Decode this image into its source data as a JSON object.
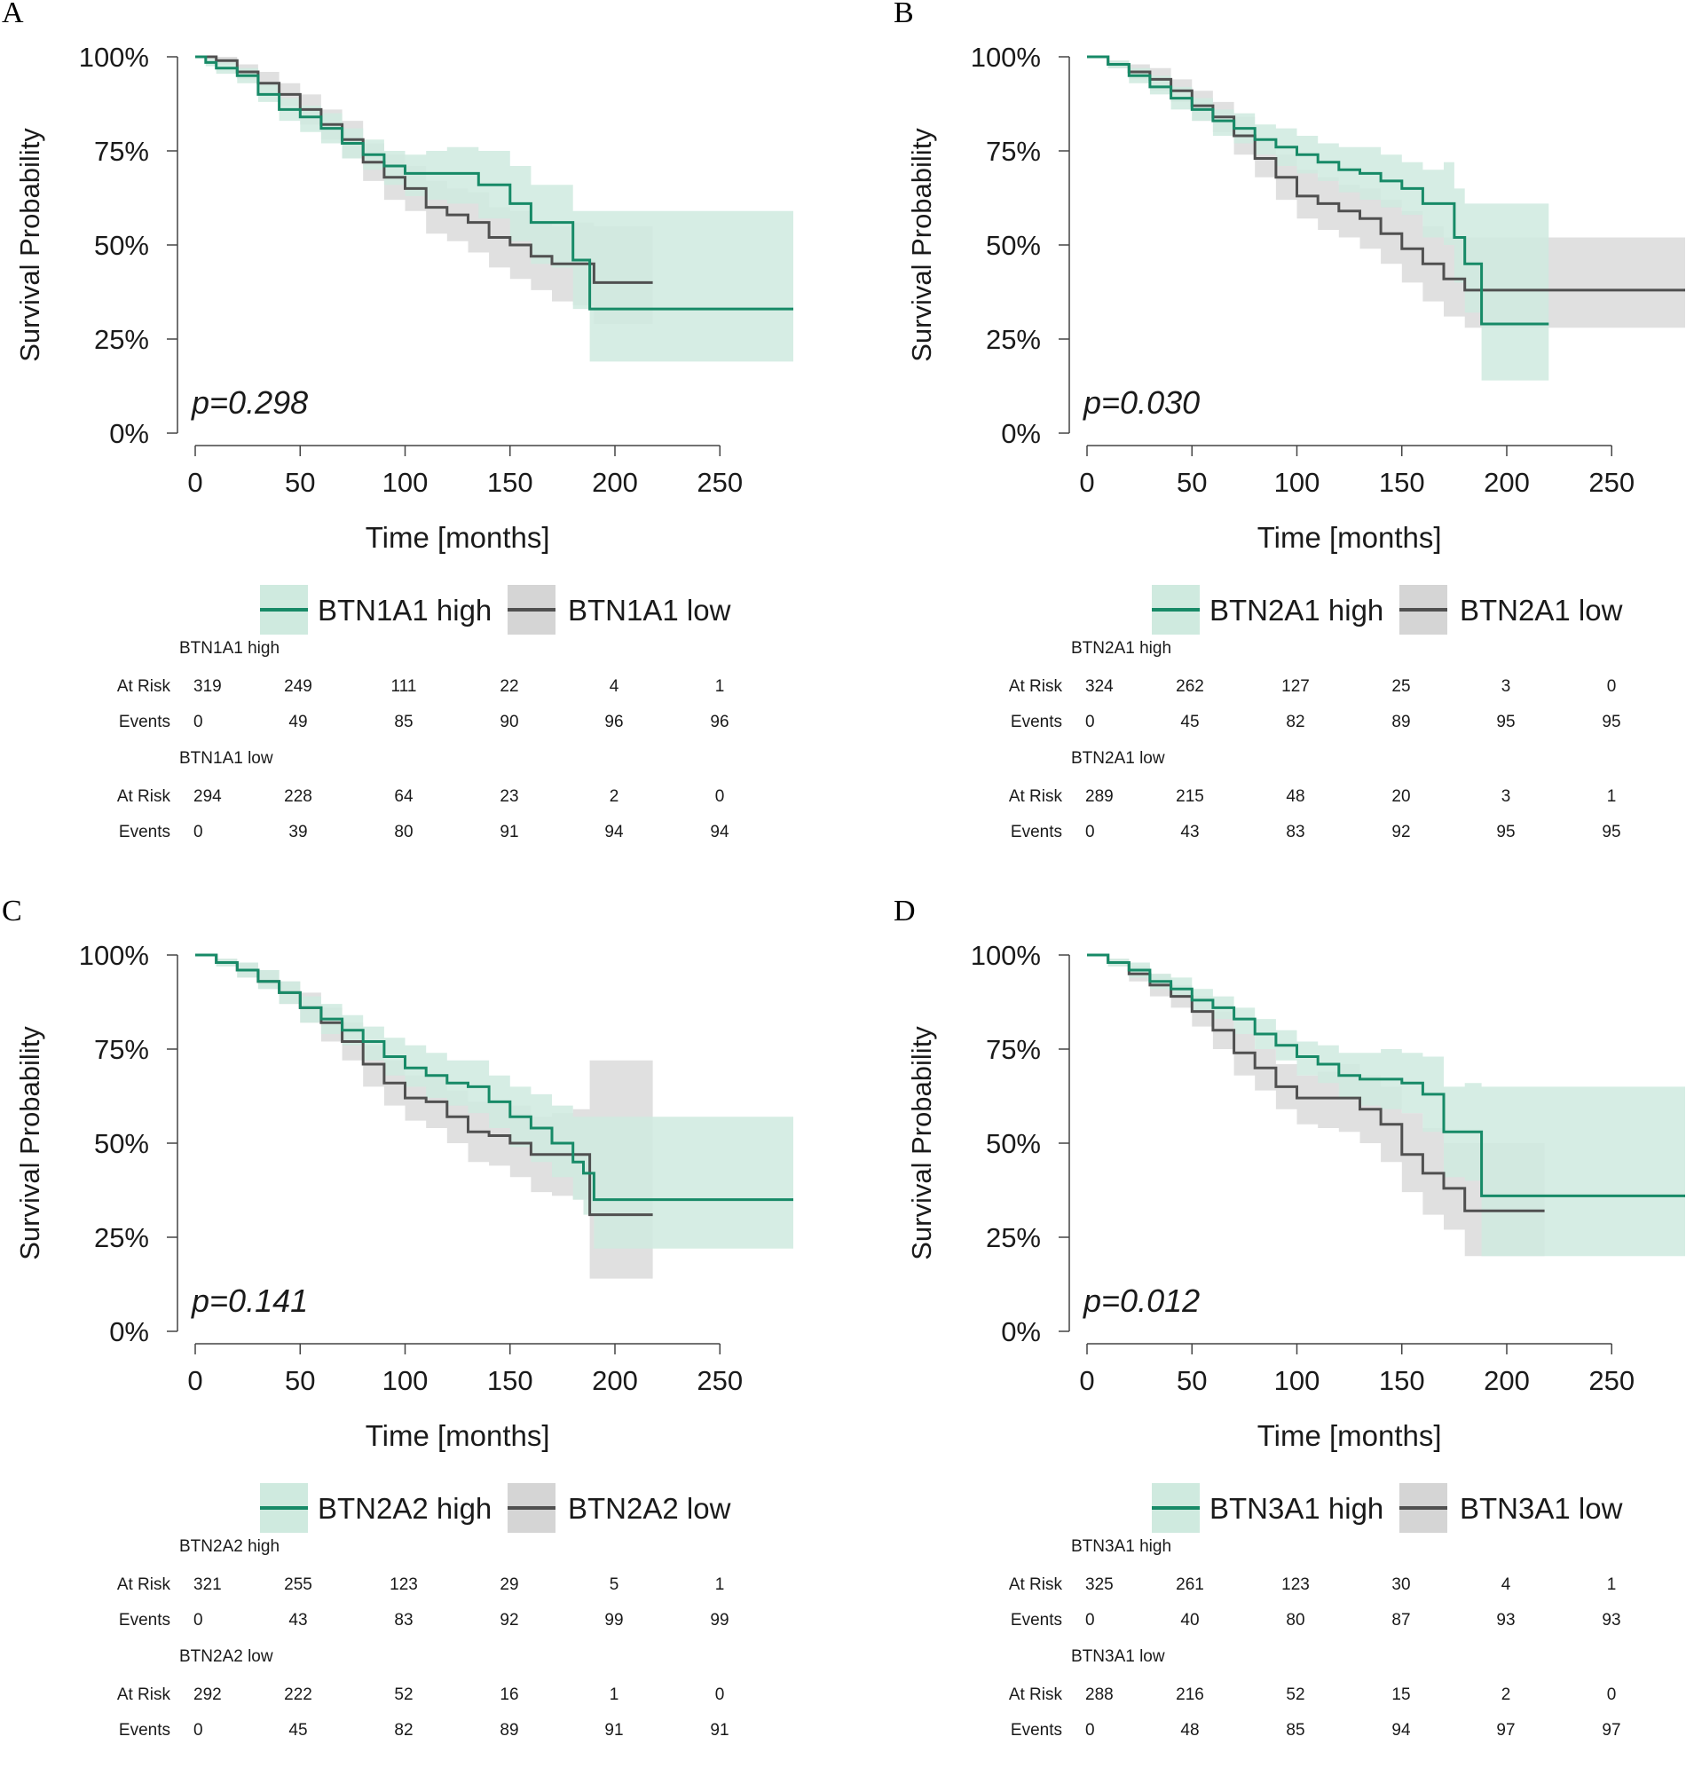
{
  "figure": {
    "x_ticks": [
      0,
      50,
      100,
      150,
      200,
      250
    ],
    "x_tick_labels": [
      "0",
      "50",
      "100",
      "150",
      "200",
      "250"
    ],
    "y_tick_labels": [
      "0%",
      "25%",
      "50%",
      "75%",
      "100%"
    ],
    "xlabel": "Time [months]",
    "ylabel": "Survival Probability",
    "at_risk_label": "At Risk",
    "events_label": "Events",
    "colors": {
      "high": "#178a67",
      "high_band": "#cfeadf",
      "low": "#505050",
      "low_band": "#d5d5d5"
    }
  },
  "chart_data": [
    {
      "type": "line",
      "panel": "A",
      "p_value": "p=0.298",
      "xlim": [
        0,
        280
      ],
      "ylim": [
        0,
        1
      ],
      "legend": {
        "high": "BTN1A1 high",
        "low": "BTN1A1 low"
      },
      "series": [
        {
          "name": "BTN1A1 high",
          "x": [
            0,
            5,
            10,
            20,
            30,
            40,
            50,
            60,
            70,
            80,
            90,
            100,
            110,
            120,
            135,
            150,
            160,
            170,
            180,
            188,
            200,
            220,
            250,
            285
          ],
          "y": [
            1.0,
            0.985,
            0.97,
            0.95,
            0.9,
            0.86,
            0.84,
            0.81,
            0.77,
            0.74,
            0.71,
            0.69,
            0.69,
            0.69,
            0.66,
            0.61,
            0.56,
            0.56,
            0.46,
            0.33,
            0.33,
            0.33,
            0.33,
            0.33
          ],
          "lower": [
            1.0,
            0.975,
            0.955,
            0.93,
            0.88,
            0.83,
            0.8,
            0.77,
            0.73,
            0.7,
            0.66,
            0.63,
            0.62,
            0.61,
            0.57,
            0.51,
            0.45,
            0.44,
            0.33,
            0.19,
            0.19,
            0.19,
            0.19,
            0.19
          ],
          "upper": [
            1.0,
            0.995,
            0.985,
            0.97,
            0.93,
            0.89,
            0.87,
            0.85,
            0.81,
            0.78,
            0.75,
            0.74,
            0.75,
            0.76,
            0.75,
            0.71,
            0.66,
            0.66,
            0.59,
            0.59,
            0.59,
            0.59,
            0.59,
            0.59
          ]
        },
        {
          "name": "BTN1A1 low",
          "x": [
            0,
            5,
            10,
            20,
            30,
            40,
            50,
            60,
            70,
            80,
            90,
            100,
            110,
            120,
            130,
            140,
            150,
            160,
            170,
            180,
            190,
            200,
            218
          ],
          "y": [
            1.0,
            1.0,
            0.99,
            0.96,
            0.93,
            0.9,
            0.86,
            0.82,
            0.78,
            0.72,
            0.68,
            0.65,
            0.6,
            0.58,
            0.56,
            0.52,
            0.5,
            0.47,
            0.45,
            0.45,
            0.4,
            0.4,
            0.4
          ],
          "lower": [
            1.0,
            1.0,
            0.98,
            0.94,
            0.9,
            0.87,
            0.82,
            0.78,
            0.73,
            0.67,
            0.62,
            0.59,
            0.53,
            0.51,
            0.48,
            0.44,
            0.41,
            0.38,
            0.35,
            0.34,
            0.29,
            0.29,
            0.29
          ],
          "upper": [
            1.0,
            1.0,
            1.0,
            0.98,
            0.96,
            0.93,
            0.9,
            0.86,
            0.83,
            0.77,
            0.74,
            0.71,
            0.67,
            0.65,
            0.64,
            0.6,
            0.59,
            0.56,
            0.55,
            0.56,
            0.55,
            0.55,
            0.55
          ]
        }
      ],
      "risk_table": {
        "high_title": "BTN1A1 high",
        "high_at_risk": [
          "319",
          "249",
          "111",
          "22",
          "4",
          "1"
        ],
        "high_events": [
          "0",
          "49",
          "85",
          "90",
          "96",
          "96"
        ],
        "low_title": "BTN1A1 low",
        "low_at_risk": [
          "294",
          "228",
          "64",
          "23",
          "2",
          "0"
        ],
        "low_events": [
          "0",
          "39",
          "80",
          "91",
          "94",
          "94"
        ]
      }
    },
    {
      "type": "line",
      "panel": "B",
      "p_value": "p=0.030",
      "xlim": [
        0,
        285
      ],
      "ylim": [
        0,
        1
      ],
      "legend": {
        "high": "BTN2A1 high",
        "low": "BTN2A1 low"
      },
      "series": [
        {
          "name": "BTN2A1 high",
          "x": [
            0,
            10,
            20,
            30,
            40,
            50,
            60,
            70,
            80,
            90,
            100,
            110,
            120,
            130,
            140,
            150,
            160,
            170,
            175,
            180,
            188,
            200,
            220
          ],
          "y": [
            1.0,
            0.98,
            0.95,
            0.92,
            0.89,
            0.86,
            0.83,
            0.81,
            0.78,
            0.76,
            0.74,
            0.72,
            0.7,
            0.69,
            0.67,
            0.65,
            0.61,
            0.61,
            0.52,
            0.45,
            0.29,
            0.29,
            0.29
          ],
          "lower": [
            1.0,
            0.97,
            0.93,
            0.9,
            0.86,
            0.83,
            0.79,
            0.77,
            0.74,
            0.71,
            0.69,
            0.67,
            0.64,
            0.62,
            0.6,
            0.58,
            0.52,
            0.5,
            0.4,
            0.32,
            0.14,
            0.14,
            0.14
          ],
          "upper": [
            1.0,
            0.99,
            0.97,
            0.95,
            0.92,
            0.89,
            0.86,
            0.85,
            0.82,
            0.81,
            0.79,
            0.77,
            0.76,
            0.76,
            0.74,
            0.72,
            0.7,
            0.72,
            0.65,
            0.61,
            0.61,
            0.61,
            0.61
          ]
        },
        {
          "name": "BTN2A1 low",
          "x": [
            0,
            10,
            20,
            30,
            40,
            50,
            60,
            70,
            80,
            90,
            100,
            110,
            120,
            130,
            140,
            150,
            160,
            170,
            180,
            200,
            220,
            250,
            285
          ],
          "y": [
            1.0,
            0.98,
            0.96,
            0.94,
            0.91,
            0.87,
            0.84,
            0.79,
            0.73,
            0.68,
            0.63,
            0.61,
            0.59,
            0.57,
            0.53,
            0.49,
            0.45,
            0.41,
            0.38,
            0.38,
            0.38,
            0.38,
            0.38
          ],
          "lower": [
            1.0,
            0.97,
            0.94,
            0.91,
            0.88,
            0.83,
            0.8,
            0.74,
            0.68,
            0.62,
            0.57,
            0.54,
            0.52,
            0.49,
            0.45,
            0.4,
            0.35,
            0.31,
            0.28,
            0.28,
            0.28,
            0.28,
            0.28
          ],
          "upper": [
            1.0,
            0.99,
            0.98,
            0.97,
            0.94,
            0.91,
            0.88,
            0.84,
            0.78,
            0.74,
            0.7,
            0.68,
            0.66,
            0.65,
            0.62,
            0.59,
            0.55,
            0.52,
            0.52,
            0.52,
            0.52,
            0.52,
            0.52
          ]
        }
      ],
      "risk_table": {
        "high_title": "BTN2A1 high",
        "high_at_risk": [
          "324",
          "262",
          "127",
          "25",
          "3",
          "0"
        ],
        "high_events": [
          "0",
          "45",
          "82",
          "89",
          "95",
          "95"
        ],
        "low_title": "BTN2A1 low",
        "low_at_risk": [
          "289",
          "215",
          "48",
          "20",
          "3",
          "1"
        ],
        "low_events": [
          "0",
          "43",
          "83",
          "92",
          "95",
          "95"
        ]
      }
    },
    {
      "type": "line",
      "panel": "C",
      "p_value": "p=0.141",
      "xlim": [
        0,
        285
      ],
      "ylim": [
        0,
        1
      ],
      "legend": {
        "high": "BTN2A2 high",
        "low": "BTN2A2 low"
      },
      "series": [
        {
          "name": "BTN2A2 high",
          "x": [
            0,
            10,
            20,
            30,
            40,
            50,
            60,
            70,
            80,
            90,
            100,
            110,
            120,
            130,
            140,
            150,
            160,
            170,
            180,
            185,
            190,
            200,
            220,
            250,
            285
          ],
          "y": [
            1.0,
            0.98,
            0.96,
            0.93,
            0.9,
            0.86,
            0.83,
            0.8,
            0.77,
            0.73,
            0.7,
            0.68,
            0.66,
            0.65,
            0.61,
            0.57,
            0.54,
            0.5,
            0.45,
            0.42,
            0.35,
            0.35,
            0.35,
            0.35,
            0.35
          ],
          "lower": [
            1.0,
            0.97,
            0.94,
            0.91,
            0.87,
            0.82,
            0.79,
            0.76,
            0.72,
            0.68,
            0.65,
            0.62,
            0.6,
            0.58,
            0.54,
            0.49,
            0.45,
            0.41,
            0.35,
            0.31,
            0.22,
            0.22,
            0.22,
            0.22,
            0.22
          ],
          "upper": [
            1.0,
            0.99,
            0.98,
            0.96,
            0.93,
            0.89,
            0.87,
            0.84,
            0.81,
            0.78,
            0.76,
            0.74,
            0.72,
            0.72,
            0.68,
            0.65,
            0.63,
            0.6,
            0.57,
            0.57,
            0.57,
            0.57,
            0.57,
            0.57,
            0.57
          ]
        },
        {
          "name": "BTN2A2 low",
          "x": [
            0,
            10,
            20,
            30,
            40,
            50,
            60,
            70,
            80,
            90,
            100,
            110,
            120,
            130,
            140,
            150,
            160,
            170,
            180,
            188,
            200,
            218
          ],
          "y": [
            1.0,
            0.98,
            0.96,
            0.93,
            0.9,
            0.86,
            0.82,
            0.77,
            0.71,
            0.66,
            0.62,
            0.61,
            0.57,
            0.53,
            0.52,
            0.5,
            0.47,
            0.47,
            0.47,
            0.31,
            0.31,
            0.31
          ],
          "lower": [
            1.0,
            0.97,
            0.94,
            0.91,
            0.87,
            0.82,
            0.77,
            0.72,
            0.65,
            0.6,
            0.56,
            0.54,
            0.5,
            0.45,
            0.44,
            0.41,
            0.37,
            0.36,
            0.35,
            0.14,
            0.14,
            0.14
          ],
          "upper": [
            1.0,
            0.99,
            0.98,
            0.96,
            0.93,
            0.9,
            0.86,
            0.82,
            0.76,
            0.72,
            0.68,
            0.68,
            0.64,
            0.61,
            0.61,
            0.6,
            0.57,
            0.58,
            0.59,
            0.72,
            0.72,
            0.72
          ]
        }
      ],
      "risk_table": {
        "high_title": "BTN2A2 high",
        "high_at_risk": [
          "321",
          "255",
          "123",
          "29",
          "5",
          "1"
        ],
        "high_events": [
          "0",
          "43",
          "83",
          "92",
          "99",
          "99"
        ],
        "low_title": "BTN2A2 low",
        "low_at_risk": [
          "292",
          "222",
          "52",
          "16",
          "1",
          "0"
        ],
        "low_events": [
          "0",
          "45",
          "82",
          "89",
          "91",
          "91"
        ]
      }
    },
    {
      "type": "line",
      "panel": "D",
      "p_value": "p=0.012",
      "xlim": [
        0,
        285
      ],
      "ylim": [
        0,
        1
      ],
      "legend": {
        "high": "BTN3A1 high",
        "low": "BTN3A1 low"
      },
      "series": [
        {
          "name": "BTN3A1 high",
          "x": [
            0,
            10,
            20,
            30,
            40,
            50,
            60,
            70,
            80,
            90,
            100,
            110,
            120,
            130,
            140,
            150,
            160,
            170,
            180,
            188,
            200,
            220,
            250,
            285
          ],
          "y": [
            1.0,
            0.98,
            0.96,
            0.93,
            0.91,
            0.88,
            0.86,
            0.83,
            0.79,
            0.76,
            0.73,
            0.71,
            0.68,
            0.67,
            0.67,
            0.66,
            0.63,
            0.53,
            0.53,
            0.36,
            0.36,
            0.36,
            0.36,
            0.36
          ],
          "lower": [
            1.0,
            0.97,
            0.94,
            0.91,
            0.89,
            0.85,
            0.83,
            0.79,
            0.75,
            0.72,
            0.68,
            0.66,
            0.62,
            0.6,
            0.59,
            0.58,
            0.53,
            0.41,
            0.4,
            0.2,
            0.2,
            0.2,
            0.2,
            0.2
          ],
          "upper": [
            1.0,
            0.99,
            0.98,
            0.95,
            0.94,
            0.91,
            0.89,
            0.86,
            0.83,
            0.8,
            0.77,
            0.76,
            0.74,
            0.74,
            0.75,
            0.74,
            0.73,
            0.65,
            0.66,
            0.65,
            0.65,
            0.65,
            0.65,
            0.65
          ]
        },
        {
          "name": "BTN3A1 low",
          "x": [
            0,
            10,
            20,
            30,
            40,
            50,
            60,
            70,
            80,
            90,
            100,
            110,
            120,
            130,
            140,
            150,
            160,
            170,
            180,
            190,
            200,
            218
          ],
          "y": [
            1.0,
            0.98,
            0.95,
            0.92,
            0.89,
            0.85,
            0.8,
            0.74,
            0.7,
            0.65,
            0.62,
            0.62,
            0.62,
            0.59,
            0.55,
            0.47,
            0.42,
            0.38,
            0.32,
            0.32,
            0.32,
            0.32
          ],
          "lower": [
            1.0,
            0.97,
            0.93,
            0.89,
            0.86,
            0.81,
            0.75,
            0.68,
            0.64,
            0.59,
            0.55,
            0.54,
            0.53,
            0.5,
            0.45,
            0.37,
            0.31,
            0.27,
            0.2,
            0.2,
            0.2,
            0.2
          ],
          "upper": [
            1.0,
            0.99,
            0.97,
            0.95,
            0.92,
            0.89,
            0.85,
            0.79,
            0.75,
            0.71,
            0.68,
            0.69,
            0.71,
            0.68,
            0.65,
            0.58,
            0.54,
            0.5,
            0.5,
            0.5,
            0.5,
            0.5
          ]
        }
      ],
      "risk_table": {
        "high_title": "BTN3A1 high",
        "high_at_risk": [
          "325",
          "261",
          "123",
          "30",
          "4",
          "1"
        ],
        "high_events": [
          "0",
          "40",
          "80",
          "87",
          "93",
          "93"
        ],
        "low_title": "BTN3A1 low",
        "low_at_risk": [
          "288",
          "216",
          "52",
          "15",
          "2",
          "0"
        ],
        "low_events": [
          "0",
          "48",
          "85",
          "94",
          "97",
          "97"
        ]
      }
    }
  ]
}
